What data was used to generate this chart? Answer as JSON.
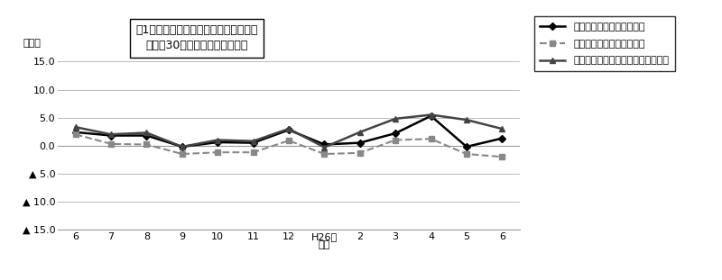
{
  "title_box_line1": "図1　賃金指数の推移（対前年同月比）",
  "title_box_line2": "－規模30人以上－　調査産業計",
  "ylabel": "（％）",
  "xlabel_bottom": "１月",
  "xtick_labels": [
    "6",
    "7",
    "8",
    "9",
    "10",
    "11",
    "12",
    "H26年\n１月",
    "2",
    "3",
    "4",
    "5",
    "6"
  ],
  "ylim": [
    -15.0,
    15.0
  ],
  "yticks": [
    -15.0,
    -10.0,
    -5.0,
    0.0,
    5.0,
    10.0,
    15.0
  ],
  "series": {
    "nominal_total": {
      "label": "名目賃金（現金給与総額）",
      "color": "#000000",
      "linestyle": "-",
      "marker": "D",
      "markersize": 4,
      "linewidth": 1.8,
      "values": [
        2.4,
        1.8,
        1.8,
        -0.2,
        0.6,
        0.5,
        2.8,
        0.2,
        0.5,
        2.2,
        5.3,
        -0.2,
        1.3
      ]
    },
    "real_total": {
      "label": "実質賃金（現金給与総額）",
      "color": "#888888",
      "linestyle": "--",
      "marker": "s",
      "markersize": 4,
      "linewidth": 1.5,
      "values": [
        2.0,
        0.3,
        0.2,
        -1.5,
        -1.2,
        -1.2,
        0.9,
        -1.5,
        -1.3,
        1.0,
        1.2,
        -1.5,
        -2.0
      ]
    },
    "nominal_fixed": {
      "label": "名目賃金（きまって支給する給与）",
      "color": "#444444",
      "linestyle": "-",
      "marker": "^",
      "markersize": 5,
      "linewidth": 1.8,
      "values": [
        3.3,
        2.0,
        2.3,
        -0.2,
        1.0,
        0.8,
        3.0,
        -0.3,
        2.4,
        4.8,
        5.5,
        4.6,
        3.0
      ]
    }
  },
  "background_color": "#ffffff",
  "grid_color": "#bbbbbb",
  "legend_fontsize": 8,
  "axis_fontsize": 8,
  "title_fontsize": 9
}
